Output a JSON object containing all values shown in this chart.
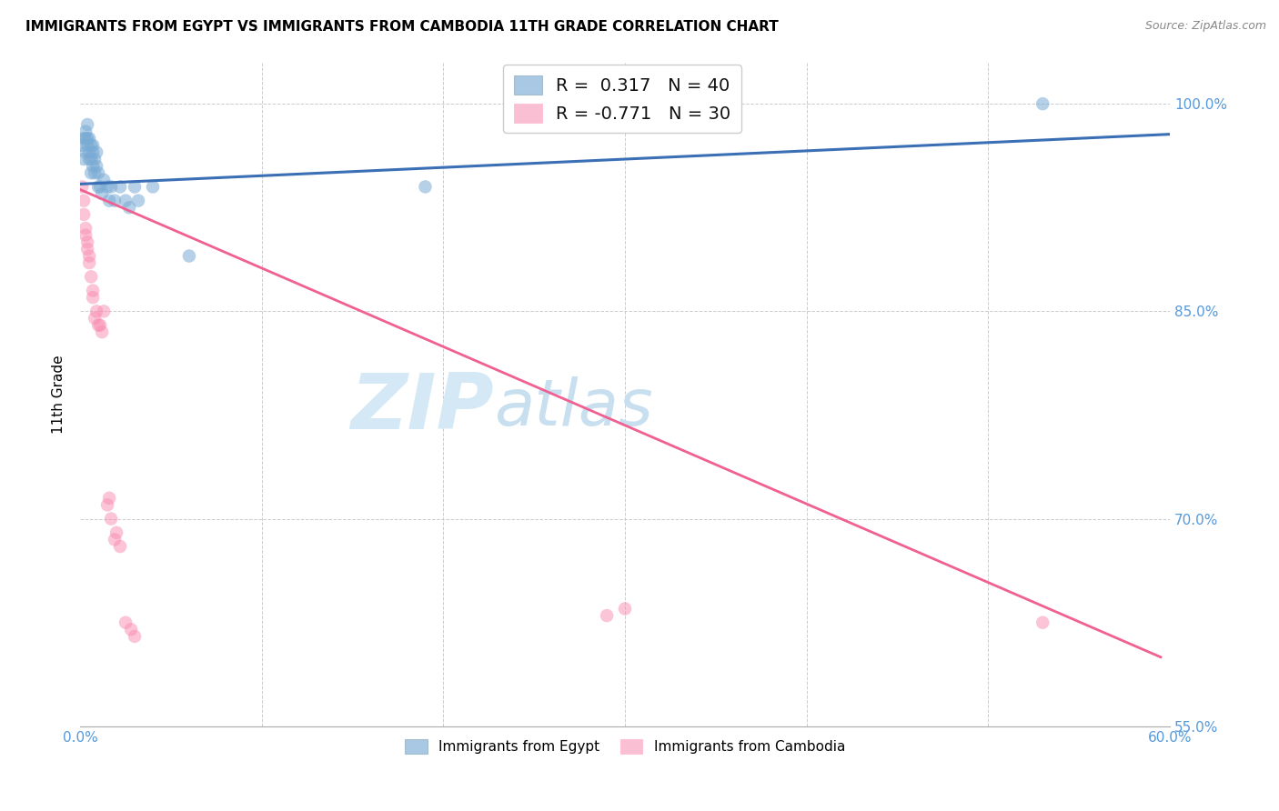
{
  "title": "IMMIGRANTS FROM EGYPT VS IMMIGRANTS FROM CAMBODIA 11TH GRADE CORRELATION CHART",
  "source": "Source: ZipAtlas.com",
  "ylabel": "11th Grade",
  "ytick_labels": [
    "100.0%",
    "85.0%",
    "70.0%",
    "55.0%"
  ],
  "ytick_values": [
    1.0,
    0.85,
    0.7,
    0.55
  ],
  "xlim": [
    0.0,
    0.6
  ],
  "ylim": [
    0.585,
    1.03
  ],
  "legend_r_egypt": "0.317",
  "legend_n_egypt": "40",
  "legend_r_cambodia": "-0.771",
  "legend_n_cambodia": "30",
  "egypt_color": "#7AABD4",
  "cambodia_color": "#F98BB0",
  "egypt_line_color": "#3B6FB5",
  "cambodia_line_color": "#F06090",
  "watermark_zip": "ZIP",
  "watermark_atlas": "atlas",
  "watermark_color": "#D5E8F5",
  "egypt_scatter_x": [
    0.001,
    0.002,
    0.002,
    0.003,
    0.003,
    0.003,
    0.004,
    0.004,
    0.004,
    0.005,
    0.005,
    0.005,
    0.006,
    0.006,
    0.006,
    0.007,
    0.007,
    0.007,
    0.008,
    0.008,
    0.009,
    0.009,
    0.01,
    0.01,
    0.011,
    0.012,
    0.013,
    0.015,
    0.016,
    0.017,
    0.019,
    0.022,
    0.025,
    0.027,
    0.03,
    0.032,
    0.04,
    0.06,
    0.19,
    0.53
  ],
  "egypt_scatter_y": [
    0.97,
    0.975,
    0.96,
    0.975,
    0.965,
    0.98,
    0.985,
    0.975,
    0.97,
    0.96,
    0.965,
    0.975,
    0.97,
    0.96,
    0.95,
    0.965,
    0.955,
    0.97,
    0.96,
    0.95,
    0.965,
    0.955,
    0.94,
    0.95,
    0.94,
    0.935,
    0.945,
    0.94,
    0.93,
    0.94,
    0.93,
    0.94,
    0.93,
    0.925,
    0.94,
    0.93,
    0.94,
    0.89,
    0.94,
    1.0
  ],
  "cambodia_scatter_x": [
    0.001,
    0.002,
    0.002,
    0.003,
    0.003,
    0.004,
    0.004,
    0.005,
    0.005,
    0.006,
    0.007,
    0.007,
    0.008,
    0.009,
    0.01,
    0.011,
    0.012,
    0.013,
    0.015,
    0.016,
    0.017,
    0.019,
    0.02,
    0.022,
    0.025,
    0.028,
    0.03,
    0.29,
    0.3,
    0.53
  ],
  "cambodia_scatter_y": [
    0.94,
    0.93,
    0.92,
    0.91,
    0.905,
    0.9,
    0.895,
    0.885,
    0.89,
    0.875,
    0.86,
    0.865,
    0.845,
    0.85,
    0.84,
    0.84,
    0.835,
    0.85,
    0.71,
    0.715,
    0.7,
    0.685,
    0.69,
    0.68,
    0.625,
    0.62,
    0.615,
    0.63,
    0.635,
    0.625
  ],
  "egypt_trend_x": [
    0.0,
    0.6
  ],
  "egypt_trend_y": [
    0.942,
    0.978
  ],
  "cambodia_trend_x": [
    0.0,
    0.595
  ],
  "cambodia_trend_y": [
    0.938,
    0.6
  ],
  "grid_color": "#CCCCCC",
  "background_color": "#FFFFFF"
}
